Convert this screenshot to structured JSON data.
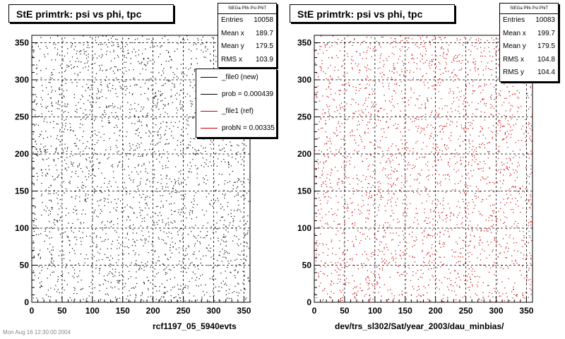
{
  "chart_data": [
    {
      "type": "scatter",
      "title": "StE primtrk: psi vs phi, tpc",
      "xlim": [
        0,
        360
      ],
      "ylim": [
        0,
        360
      ],
      "xticks": [
        0,
        50,
        100,
        150,
        200,
        250,
        300,
        350
      ],
      "yticks": [
        0,
        50,
        100,
        150,
        200,
        250,
        300,
        350
      ],
      "grid": true,
      "marker_color": "#000000",
      "stats": {
        "header": "StEGa Pfrk Psi PhiT",
        "rows": [
          {
            "label": "Entries",
            "value": "10058"
          },
          {
            "label": "Mean x",
            "value": "189.7"
          },
          {
            "label": "Mean y",
            "value": "179.5"
          },
          {
            "label": "RMS x",
            "value": "103.9"
          }
        ]
      },
      "caption": "rcf1197_05_5940evts"
    },
    {
      "type": "scatter",
      "title": "StE primtrk: psi vs phi, tpc",
      "xlim": [
        0,
        360
      ],
      "ylim": [
        0,
        360
      ],
      "xticks": [
        0,
        50,
        100,
        150,
        200,
        250,
        300,
        350
      ],
      "yticks": [
        0,
        50,
        100,
        150,
        200,
        250,
        300,
        350
      ],
      "grid": true,
      "marker_color": "#cc0000",
      "stats": {
        "header": "StEGa Pfrk Psi PhiT",
        "rows": [
          {
            "label": "Entries",
            "value": "10083"
          },
          {
            "label": "Mean x",
            "value": "199.7"
          },
          {
            "label": "Mean y",
            "value": "179.5"
          },
          {
            "label": "RMS x",
            "value": "104.8"
          },
          {
            "label": "RMS y",
            "value": "104.4"
          }
        ]
      },
      "caption": "dev/trs_sl302/Sat/year_2003/dau_minbias/"
    }
  ],
  "legend": {
    "items": [
      {
        "label": "_file0 (new)",
        "color": "#000000"
      },
      {
        "label": "prob = 0.000439",
        "color": "#000000"
      },
      {
        "label": "_file1 (ref)",
        "color": "#cc0000"
      },
      {
        "label": "probN = 0.00335",
        "color": "#cc0000"
      }
    ]
  },
  "footnote": "Mon Aug 16 12:30:00 2004"
}
